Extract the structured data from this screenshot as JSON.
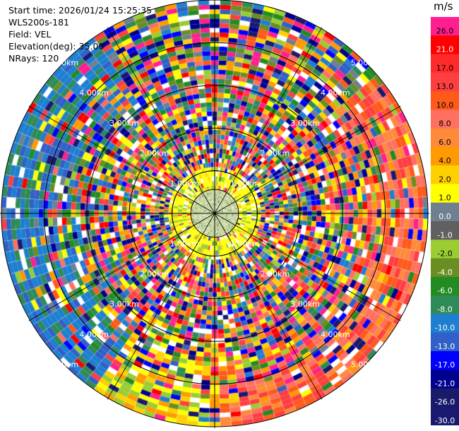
{
  "header": {
    "start_time": "Start time: 2026/01/24 15:25:35",
    "instrument": "WLS200s-181",
    "field": "Field: VEL",
    "elevation": "Elevation(deg): 35.00",
    "nrays": "NRays: 120"
  },
  "chart_data": {
    "type": "heatmap",
    "projection": "polar-ppi",
    "field": "VEL",
    "units": "m/s",
    "n_rays": 120,
    "elevation_deg": 35.0,
    "range_max_km": 5.0,
    "range_rings_km": [
      1,
      2,
      3,
      4,
      5
    ],
    "ring_labels": [
      "1.00km",
      "2.00km",
      "3.00km",
      "4.00km",
      "5.00km"
    ],
    "clean_radius_km": 0.55,
    "near_range_field_km": 1.05,
    "inner_rings_km": [
      0.56,
      1.0
    ],
    "colorbar": {
      "ticks": [
        "26.0",
        "21.0",
        "17.0",
        "13.0",
        "10.0",
        "8.0",
        "6.0",
        "4.0",
        "2.0",
        "1.0",
        "0.0",
        "-1.0",
        "-2.0",
        "-4.0",
        "-6.0",
        "-8.0",
        "-10.0",
        "-13.0",
        "-17.0",
        "-21.0",
        "-26.0",
        "-30.0"
      ],
      "colors": [
        "#ff1f8f",
        "#ff0000",
        "#ff2a2a",
        "#ff3f3f",
        "#ff5a1a",
        "#ff7060",
        "#ff8a3a",
        "#ff9a00",
        "#ffd000",
        "#ffff00",
        "#708090",
        "#606060",
        "#9acd32",
        "#6b8e23",
        "#228b22",
        "#2e8b57",
        "#1e7fd0",
        "#3060c8",
        "#0000ff",
        "#000090",
        "#1a1a6a",
        "#191970"
      ]
    },
    "wind_pattern": {
      "receding_sector_deg": [
        60,
        170
      ],
      "approaching_sector_deg": [
        230,
        310
      ],
      "near_range_colors": [
        "#ffff00",
        "#9acd32",
        "#ffd000",
        "#808080"
      ]
    }
  }
}
